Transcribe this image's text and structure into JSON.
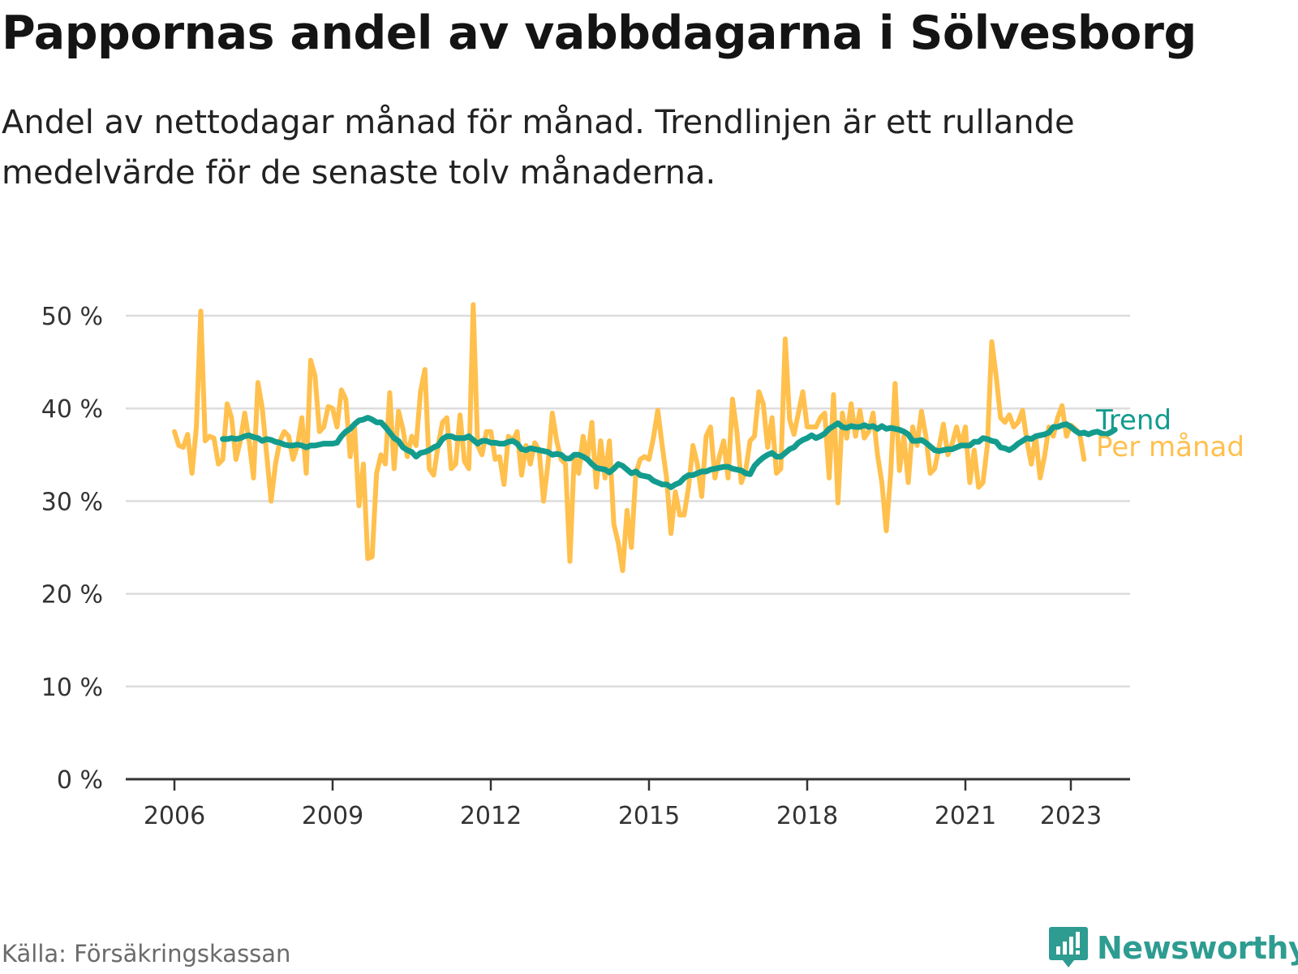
{
  "title": "Pappornas andel av vabbdagarna i Sölvesborg",
  "subtitle": "Andel av nettodagar månad för månad. Trendlinjen är ett rullande medelvärde för de senaste tolv månaderna.",
  "source": "Källa: Försäkringskassan",
  "brand": "Newsworthy",
  "colors": {
    "monthly": "#ffc04d",
    "trend": "#139c8e",
    "grid": "#dddddd",
    "axis": "#333333",
    "brand": "#2e9c91"
  },
  "chart_data": {
    "type": "line",
    "title": "Pappornas andel av vabbdagarna i Sölvesborg",
    "xlabel": "",
    "ylabel": "",
    "xlim": [
      2006,
      2024
    ],
    "ylim": [
      0,
      50
    ],
    "grid": true,
    "x_ticks": [
      {
        "value": 2006,
        "label": "2006"
      },
      {
        "value": 2009,
        "label": "2009"
      },
      {
        "value": 2012,
        "label": "2012"
      },
      {
        "value": 2015,
        "label": "2015"
      },
      {
        "value": 2018,
        "label": "2018"
      },
      {
        "value": 2021,
        "label": "2021"
      },
      {
        "value": 2023,
        "label": "2023"
      }
    ],
    "y_ticks": [
      {
        "value": 0,
        "label": "0 %"
      },
      {
        "value": 10,
        "label": "10 %"
      },
      {
        "value": 20,
        "label": "20 %"
      },
      {
        "value": 30,
        "label": "30 %"
      },
      {
        "value": 40,
        "label": "40 %"
      },
      {
        "value": 50,
        "label": "50 %"
      }
    ],
    "series": [
      {
        "name": "Per månad",
        "start": 2006.0,
        "step_months": 1,
        "values": [
          37.5,
          36,
          35.8,
          37.2,
          33,
          38,
          50.5,
          36.5,
          37,
          36.8,
          34,
          34.5,
          40.5,
          39,
          34.5,
          36.5,
          39.5,
          36.5,
          32.5,
          42.8,
          40,
          35,
          30,
          34,
          36.5,
          37.5,
          37,
          34.5,
          36,
          39,
          33,
          45.2,
          43.5,
          37.5,
          38,
          40.2,
          40,
          38,
          42,
          41,
          34.8,
          38,
          29.5,
          34,
          23.8,
          24,
          33,
          35,
          34,
          41.7,
          33.5,
          39.7,
          37.8,
          34.8,
          37,
          36,
          41.8,
          44.2,
          33.5,
          32.8,
          36,
          38.5,
          39,
          33.5,
          34,
          39.3,
          34.3,
          33.5,
          51.2,
          36,
          35,
          37.5,
          37.5,
          34.5,
          34.8,
          31.8,
          37,
          36.5,
          37.5,
          32.8,
          36,
          34,
          36.3,
          35.5,
          30,
          34,
          39.5,
          36.5,
          34.5,
          34,
          23.5,
          35,
          33,
          37,
          34.5,
          38.5,
          31.5,
          36.5,
          32.5,
          36.5,
          27.5,
          25.5,
          22.5,
          29,
          25,
          33,
          34.5,
          34.8,
          34.5,
          36.8,
          39.8,
          36,
          32.5,
          26.5,
          31,
          28.5,
          28.5,
          31.5,
          36,
          34,
          30.5,
          37,
          38,
          32.5,
          34.8,
          36.5,
          32.5,
          41,
          37.5,
          32,
          33.3,
          36.5,
          37,
          41.8,
          40.5,
          35.8,
          39,
          33,
          33.5,
          47.5,
          38.8,
          37.2,
          39.5,
          41.8,
          38,
          38,
          38,
          39,
          39.5,
          32.5,
          41.5,
          29.8,
          39.5,
          36.8,
          40.5,
          37,
          39.8,
          36.8,
          37.5,
          39.5,
          35,
          32,
          26.8,
          33,
          42.7,
          33.3,
          37,
          32,
          38,
          36,
          39.7,
          37,
          33,
          33.5,
          35.8,
          38.3,
          35,
          36.2,
          38,
          36,
          38,
          32,
          35.5,
          31.5,
          32,
          36,
          47.2,
          43.5,
          39,
          38.5,
          39.3,
          38,
          38.5,
          39.8,
          36.5,
          34,
          37,
          32.5,
          34.8,
          38,
          37,
          39,
          40.3,
          37,
          38.2,
          37.8,
          37.3,
          34.5
        ]
      },
      {
        "name": "Trend",
        "start": 2006.917,
        "step_months": 1,
        "values": [
          36.7,
          36.7,
          36.8,
          36.7,
          36.8,
          37,
          37.1,
          36.9,
          36.8,
          36.5,
          36.7,
          36.6,
          36.4,
          36.3,
          36.1,
          36,
          36,
          36.1,
          36,
          35.8,
          36,
          36,
          36.1,
          36.2,
          36.2,
          36.2,
          36.3,
          37,
          37.5,
          37.8,
          38.3,
          38.7,
          38.8,
          39,
          38.8,
          38.5,
          38.5,
          38,
          37.4,
          36.8,
          36.5,
          35.8,
          35.5,
          35.3,
          34.8,
          35.2,
          35.3,
          35.5,
          35.8,
          36,
          36.7,
          37,
          37,
          36.8,
          36.8,
          36.8,
          37,
          36.6,
          36.2,
          36.5,
          36.5,
          36.3,
          36.3,
          36.2,
          36.2,
          36.4,
          36.5,
          36.2,
          35.6,
          35.5,
          35.7,
          35.6,
          35.5,
          35.4,
          35.3,
          35,
          35.1,
          35,
          34.6,
          34.6,
          35,
          35,
          34.8,
          34.5,
          34,
          33.6,
          33.5,
          33.4,
          33.1,
          33.5,
          34,
          33.8,
          33.4,
          33,
          33.2,
          32.8,
          32.7,
          32.6,
          32.2,
          32,
          31.8,
          31.8,
          31.5,
          31.8,
          32,
          32.5,
          32.8,
          32.8,
          33,
          33.2,
          33.2,
          33.4,
          33.5,
          33.6,
          33.7,
          33.7,
          33.5,
          33.4,
          33.3,
          33,
          32.9,
          33.8,
          34.3,
          34.7,
          35,
          35.2,
          34.8,
          34.8,
          35.2,
          35.6,
          35.8,
          36.3,
          36.6,
          36.8,
          37.1,
          36.8,
          37,
          37.3,
          37.8,
          38.1,
          38.4,
          38,
          37.9,
          38.1,
          38,
          38,
          38.2,
          38,
          38.1,
          37.8,
          38.1,
          37.8,
          37.9,
          37.8,
          37.7,
          37.5,
          37.2,
          36.5,
          36.5,
          36.6,
          36.3,
          35.9,
          35.5,
          35.4,
          35.5,
          35.6,
          35.6,
          35.8,
          36,
          36,
          36,
          36.4,
          36.4,
          36.8,
          36.7,
          36.5,
          36.4,
          35.8,
          35.7,
          35.5,
          35.8,
          36.2,
          36.5,
          36.8,
          36.7,
          37,
          37.1,
          37.2,
          37.4,
          38,
          38,
          38.2,
          38.3,
          38,
          37.6,
          37.3,
          37.4,
          37.2,
          37.4,
          37.5,
          37.3,
          37.2,
          37.4,
          37.7
        ]
      }
    ]
  }
}
